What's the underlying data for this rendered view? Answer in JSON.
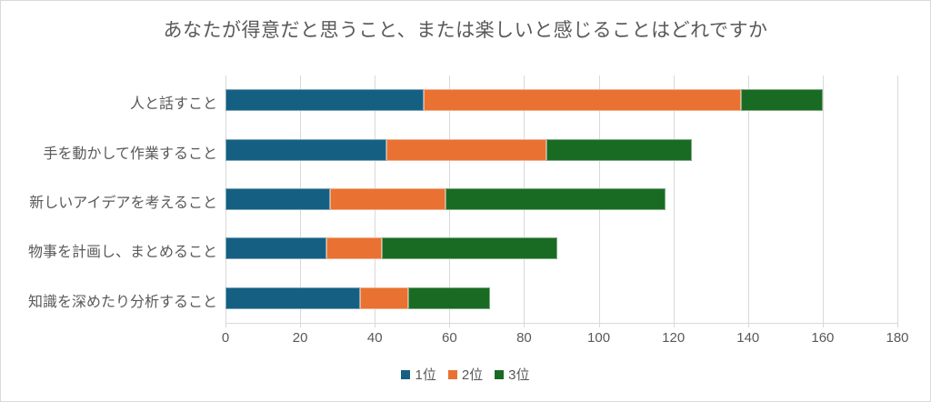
{
  "chart_data": {
    "type": "bar",
    "orientation": "horizontal",
    "stacked": true,
    "title": "あなたが得意だと思うこと、または楽しいと感じることはどれですか",
    "categories": [
      "人と話すこと",
      "手を動かして作業すること",
      "新しいアイデアを考えること",
      "物事を計画し、まとめること",
      "知識を深めたり分析すること"
    ],
    "series": [
      {
        "name": "1位",
        "color": "#156082",
        "values": [
          53,
          43,
          28,
          27,
          36
        ]
      },
      {
        "name": "2位",
        "color": "#E97132",
        "values": [
          85,
          43,
          31,
          15,
          13
        ]
      },
      {
        "name": "3位",
        "color": "#196B24",
        "values": [
          22,
          39,
          59,
          47,
          22
        ]
      }
    ],
    "totals": [
      160,
      125,
      118,
      89,
      71
    ],
    "x_axis": {
      "min": 0,
      "max": 180,
      "tick_interval": 20,
      "tick_labels": [
        "0",
        "20",
        "40",
        "60",
        "80",
        "100",
        "120",
        "140",
        "160",
        "180"
      ]
    },
    "grid": true,
    "legend_position": "bottom"
  },
  "style": {
    "text_color": "#595959",
    "grid_color": "#d9d9d9",
    "background": "#ffffff",
    "border_color": "#d9d9d9"
  }
}
